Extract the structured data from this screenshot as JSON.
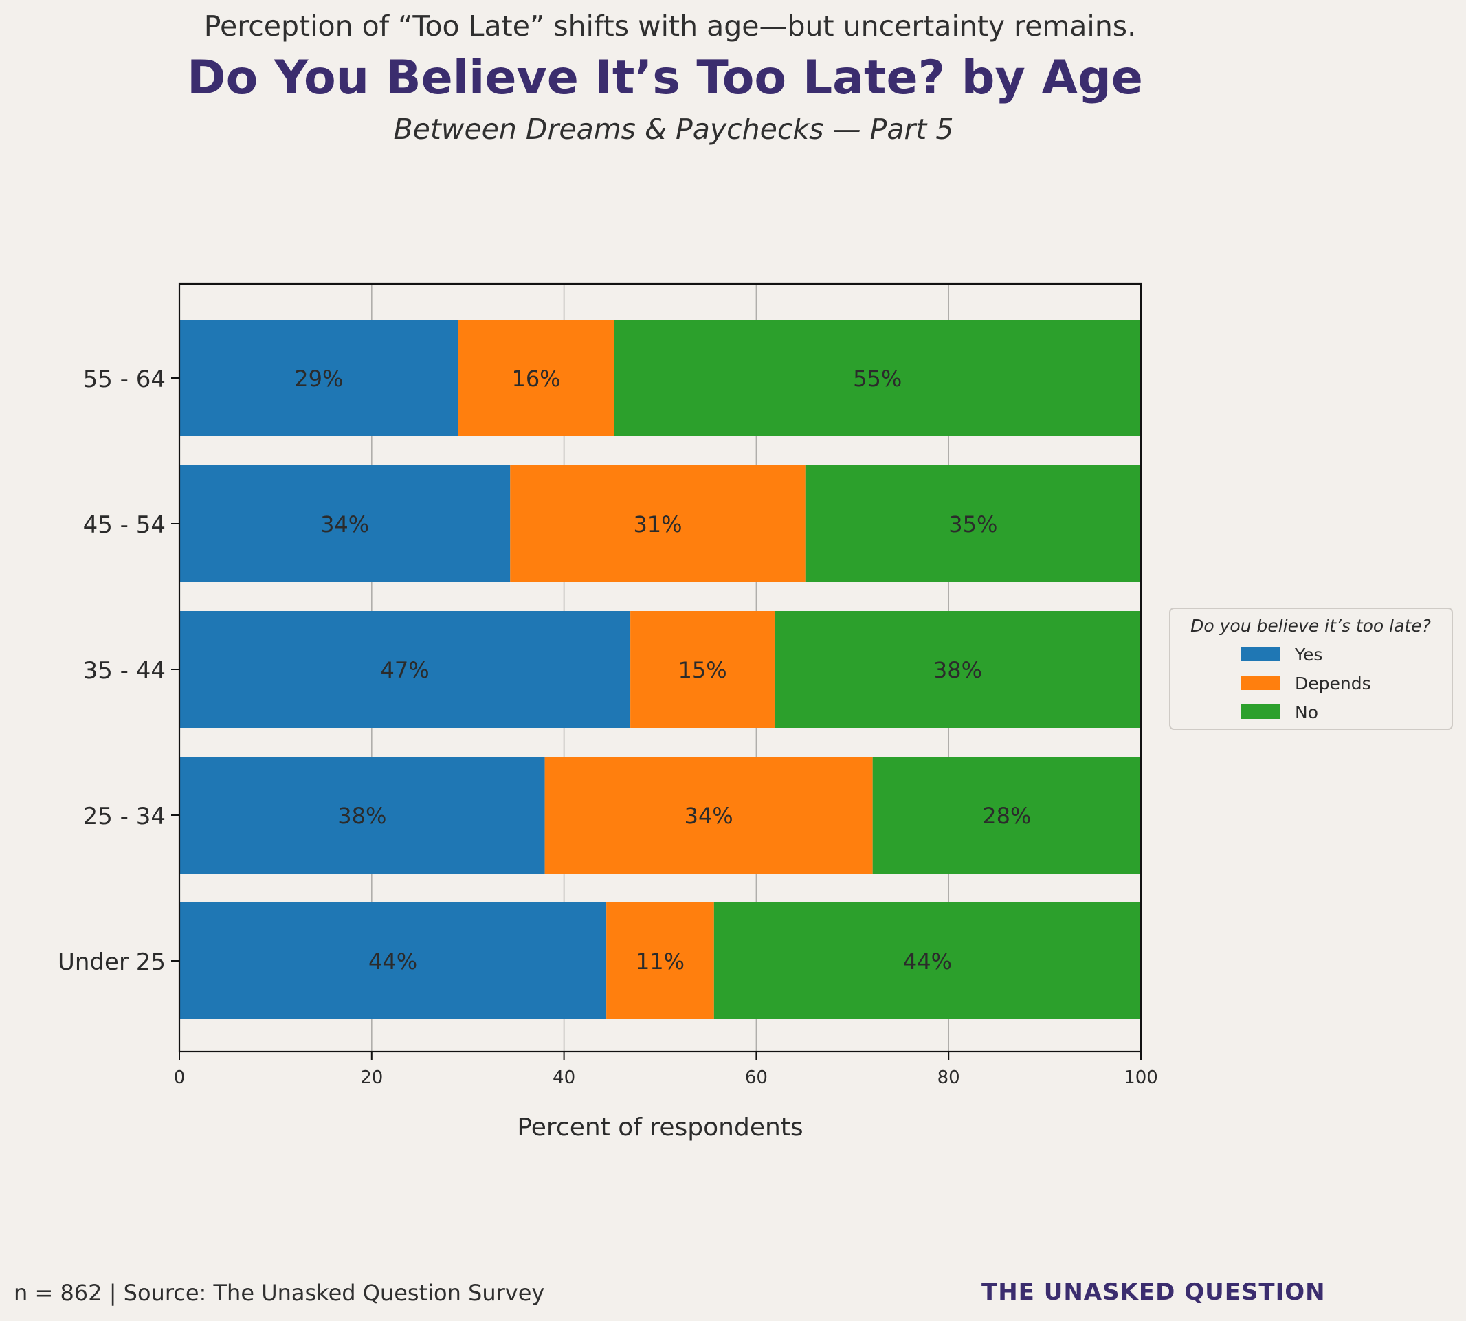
{
  "header": {
    "kicker": "Perception of “Too Late” shifts with age—but uncertainty remains.",
    "title": "Do You Believe It’s Too Late? by Age",
    "subtitle": "Between Dreams & Paychecks — Part 5"
  },
  "footer": {
    "note": "n = 862 | Source: The Unasked Question Survey",
    "brand": "THE UNASKED QUESTION"
  },
  "colors": {
    "yes": "#1f77b4",
    "depends": "#ff7f0e",
    "no": "#2ca02c",
    "background": "#f3f0ec",
    "title": "#3b2d6e"
  },
  "chart_data": {
    "type": "bar",
    "orientation": "horizontal",
    "stacked": true,
    "categories": [
      "Under 25",
      "25 - 34",
      "35 - 44",
      "45 - 54",
      "55 - 64"
    ],
    "series": [
      {
        "name": "Yes",
        "values": [
          44.4,
          38.0,
          46.9,
          34.4,
          29.0
        ],
        "labels": [
          "44%",
          "38%",
          "47%",
          "34%",
          "29%"
        ]
      },
      {
        "name": "Depends",
        "values": [
          11.2,
          34.1,
          15.0,
          30.7,
          16.2
        ],
        "labels": [
          "11%",
          "34%",
          "15%",
          "31%",
          "16%"
        ]
      },
      {
        "name": "No",
        "values": [
          44.4,
          27.9,
          38.1,
          34.9,
          54.8
        ],
        "labels": [
          "44%",
          "28%",
          "38%",
          "35%",
          "55%"
        ]
      }
    ],
    "xlabel": "Percent of respondents",
    "ylabel": "",
    "xlim": [
      0,
      100
    ],
    "xticks": [
      0,
      20,
      40,
      60,
      80,
      100
    ],
    "grid": "vertical",
    "legend": {
      "title": "Do you believe it’s too late?",
      "placement": "right-center"
    }
  }
}
